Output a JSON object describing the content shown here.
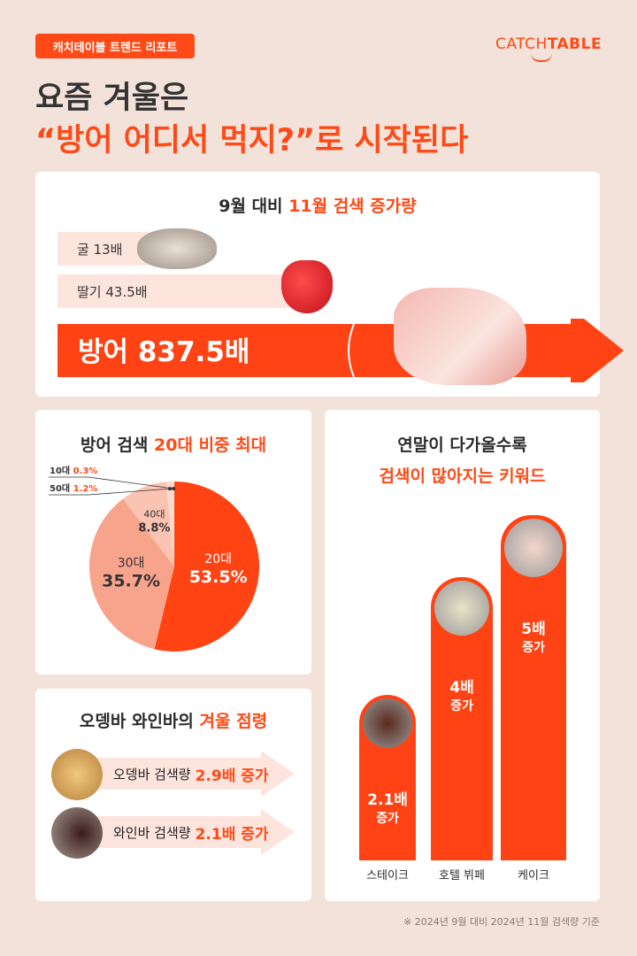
{
  "header": {
    "badge": "캐치테이블 트렌드 리포트",
    "logo": "CATCHTABLE",
    "logo_light": "CATCH",
    "logo_bold": "TABLE",
    "title_line1": "요즘 겨울은",
    "title_line2": "“방어 어디서 먹지?”로 시작된다"
  },
  "colors": {
    "accent": "#ff4a17",
    "background": "#f3e2d9",
    "light_pink": "#fde5dd"
  },
  "increase": {
    "title_a": "9월 대비 ",
    "title_b": "11월 검색 증가량",
    "items": [
      {
        "label": "굴 13배",
        "icon": "oyster-image"
      },
      {
        "label": "딸기 43.5배",
        "icon": "strawberry-image"
      },
      {
        "label": "방어 837.5배",
        "icon": "yellowtail-image"
      }
    ]
  },
  "pie": {
    "title_a": "방어 검색 ",
    "title_b": "20대 비중 최대"
  },
  "oden": {
    "title_a": "오뎅바 와인바의 ",
    "title_b": "겨울 점령",
    "items": [
      {
        "label": "오뎅바 검색량",
        "value": "2.9배 증가",
        "icon": "oden-image"
      },
      {
        "label": "와인바 검색량",
        "value": "2.1배 증가",
        "icon": "wine-image"
      }
    ]
  },
  "keywords": {
    "title_line1": "연말이 다가올수록",
    "title_line2": "검색이 많아지는 키워드"
  },
  "chart_data": [
    {
      "type": "bar",
      "title": "9월 대비 11월 검색 증가량",
      "categories": [
        "굴",
        "딸기",
        "방어"
      ],
      "values": [
        13,
        43.5,
        837.5
      ],
      "unit": "배"
    },
    {
      "type": "pie",
      "title": "방어 검색 20대 비중 최대",
      "slices": [
        {
          "label": "20대",
          "value": 53.5,
          "text": "53.5%",
          "color": "#ff4312"
        },
        {
          "label": "30대",
          "value": 35.7,
          "text": "35.7%",
          "color": "#f8a48c"
        },
        {
          "label": "40대",
          "value": 8.8,
          "text": "8.8%",
          "color": "#fbc3b2"
        },
        {
          "label": "50대",
          "value": 1.2,
          "text": "1.2%",
          "color": "#fcd9cd"
        },
        {
          "label": "10대",
          "value": 0.3,
          "text": "0.3%",
          "color": "#fde9e2"
        }
      ]
    },
    {
      "type": "bar",
      "title": "연말이 다가올수록 검색이 많아지는 키워드",
      "categories": [
        "스테이크",
        "호텔 뷔페",
        "케이크"
      ],
      "values": [
        2.1,
        4,
        5
      ],
      "bar_labels": [
        [
          "2.1배",
          "증가"
        ],
        [
          "4배",
          "증가"
        ],
        [
          "5배",
          "증가"
        ]
      ]
    }
  ],
  "footnote": "※ 2024년 9월 대비 2024년 11월 검색량 기준"
}
